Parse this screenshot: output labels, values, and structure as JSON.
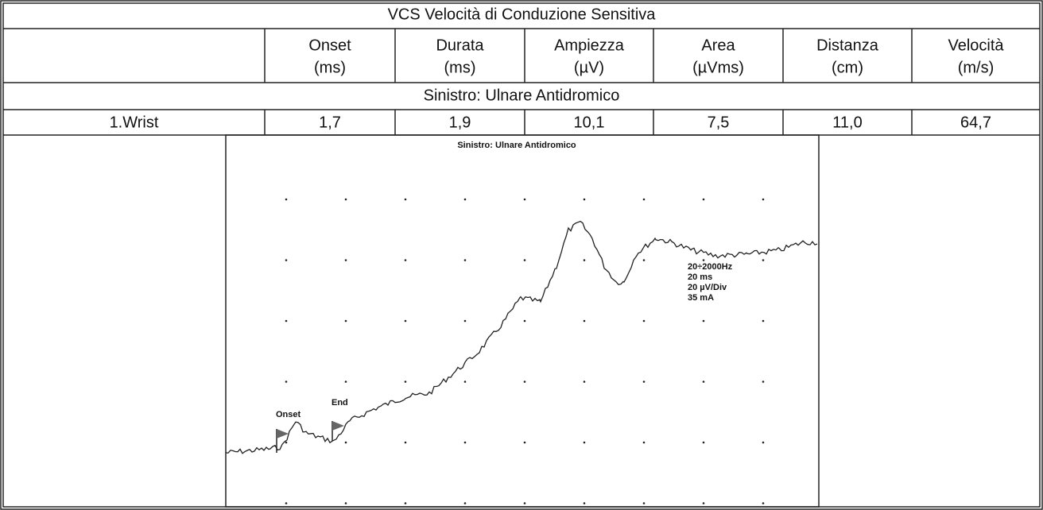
{
  "table": {
    "title": "VCS Velocità di Conduzione Sensitiva",
    "columns": [
      {
        "name": "Onset",
        "unit": "(ms)"
      },
      {
        "name": "Durata",
        "unit": "(ms)"
      },
      {
        "name": "Ampiezza",
        "unit": "(µV)"
      },
      {
        "name": "Area",
        "unit": "(µVms)"
      },
      {
        "name": "Distanza",
        "unit": "(cm)"
      },
      {
        "name": "Velocità",
        "unit": "(m/s)"
      }
    ],
    "section": "Sinistro: Ulnare Antidromico",
    "rows": [
      {
        "label": "1.Wrist",
        "cells": [
          "1,7",
          "1,9",
          "10,1",
          "7,5",
          "11,0",
          "64,7"
        ]
      }
    ]
  },
  "trace": {
    "title": "Sinistro: Ulnare Antidromico",
    "settings": [
      "20÷2000Hz",
      "20 ms",
      "20 µV/Div",
      "35 mA"
    ],
    "markers": [
      "Onset",
      "End"
    ]
  }
}
